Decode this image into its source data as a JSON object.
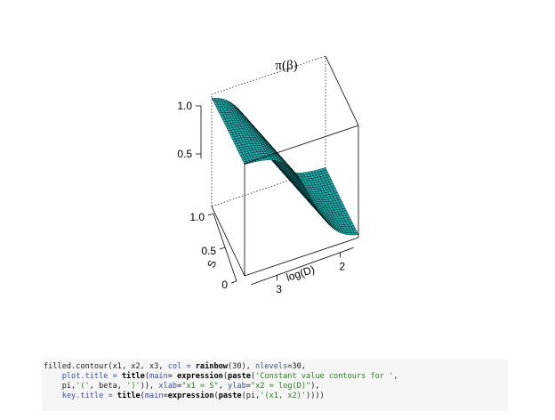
{
  "chart_data": {
    "type": "surface3d",
    "title": "π(β)",
    "z_axis": {
      "ticks": [
        0.5,
        1.0
      ],
      "tick_labels": [
        "0.5",
        "1.0"
      ],
      "range": [
        0,
        1
      ]
    },
    "s_axis": {
      "label": "S",
      "ticks": [
        0,
        0.5,
        1.0
      ],
      "tick_labels": [
        "0",
        "0.5",
        "1.0"
      ],
      "range": [
        0,
        1
      ]
    },
    "logd_axis": {
      "label": "log(D)",
      "ticks": [
        3,
        2
      ],
      "tick_labels": [
        "3",
        "2"
      ],
      "range": [
        3.5,
        1.7
      ]
    },
    "surface_color": "#1fb9ba",
    "mesh_color": "#000000",
    "shape": "logistic decline of π(β) from 1.0 at high log(D) to about 0 at low log(D)"
  },
  "code": {
    "lines": [
      [
        {
          "t": "plain",
          "v": "filled.contour(x1, x2, x3, "
        },
        {
          "t": "arg",
          "v": "col = "
        },
        {
          "t": "fn",
          "v": "rainbow"
        },
        {
          "t": "plain",
          "v": "(30), "
        },
        {
          "t": "arg",
          "v": "nlevels"
        },
        {
          "t": "plain",
          "v": "=30,"
        }
      ],
      [
        {
          "t": "plain",
          "v": "    "
        },
        {
          "t": "arg",
          "v": "plot.title = "
        },
        {
          "t": "fn",
          "v": "title"
        },
        {
          "t": "plain",
          "v": "("
        },
        {
          "t": "arg",
          "v": "main"
        },
        {
          "t": "plain",
          "v": "= "
        },
        {
          "t": "fn",
          "v": "expression"
        },
        {
          "t": "plain",
          "v": "("
        },
        {
          "t": "fn",
          "v": "paste"
        },
        {
          "t": "plain",
          "v": "("
        },
        {
          "t": "str",
          "v": "'Constant value contours for '"
        },
        {
          "t": "plain",
          "v": ","
        }
      ],
      [
        {
          "t": "plain",
          "v": "    pi,"
        },
        {
          "t": "str",
          "v": "'('"
        },
        {
          "t": "plain",
          "v": ", beta, "
        },
        {
          "t": "str",
          "v": "')'"
        },
        {
          "t": "plain",
          "v": ")), "
        },
        {
          "t": "arg",
          "v": "xlab"
        },
        {
          "t": "plain",
          "v": "="
        },
        {
          "t": "str",
          "v": "\"x1 = S\""
        },
        {
          "t": "plain",
          "v": ", "
        },
        {
          "t": "arg",
          "v": "ylab"
        },
        {
          "t": "plain",
          "v": "="
        },
        {
          "t": "str",
          "v": "\"x2 = log(D)\""
        },
        {
          "t": "plain",
          "v": "),"
        }
      ],
      [
        {
          "t": "plain",
          "v": "    "
        },
        {
          "t": "arg",
          "v": "key.title = "
        },
        {
          "t": "fn",
          "v": "title"
        },
        {
          "t": "plain",
          "v": "("
        },
        {
          "t": "arg",
          "v": "main"
        },
        {
          "t": "plain",
          "v": "="
        },
        {
          "t": "fn",
          "v": "expression"
        },
        {
          "t": "plain",
          "v": "("
        },
        {
          "t": "fn",
          "v": "paste"
        },
        {
          "t": "plain",
          "v": "(pi,"
        },
        {
          "t": "str",
          "v": "'(x1, x2)'"
        },
        {
          "t": "plain",
          "v": "))))"
        }
      ]
    ]
  }
}
